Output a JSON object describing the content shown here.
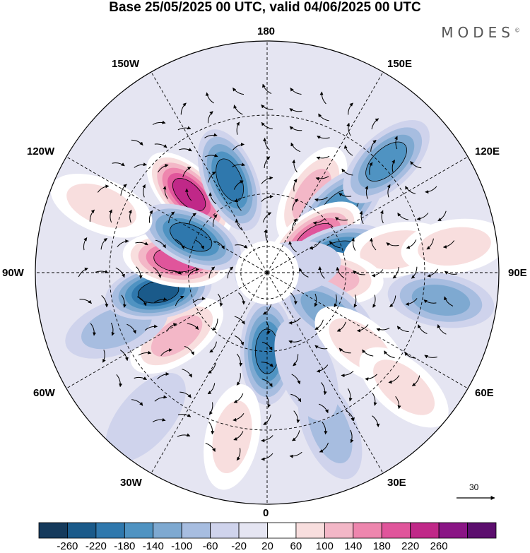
{
  "title": "Base 25/05/2025 00 UTC, valid 04/06/2025 00 UTC",
  "brand": "MODES",
  "brand_mark": "©",
  "longitude_labels": {
    "n180": "180",
    "e150": "150E",
    "e120": "120E",
    "e90": "90E",
    "e60": "60E",
    "e30": "30E",
    "n0": "0",
    "w30": "30W",
    "w60": "60W",
    "w90": "90W",
    "w120": "120W",
    "w150": "150W"
  },
  "reference_vector": "30",
  "colorbar": {
    "ticks": [
      "-260",
      "-220",
      "-180",
      "-140",
      "-100",
      "-60",
      "-20",
      "20",
      "60",
      "100",
      "140",
      "180",
      "220",
      "260"
    ],
    "colors": [
      "#153a5c",
      "#1a5a8a",
      "#2f78ad",
      "#4f93c2",
      "#7ea9d1",
      "#a7bde0",
      "#cfd3ec",
      "#e5e5f2",
      "#ffffff",
      "#f8dede",
      "#f3b7c7",
      "#ee86ae",
      "#e0559b",
      "#c02888",
      "#8a1585",
      "#5c0e6e"
    ]
  },
  "anomaly_blobs": [
    {
      "lon_deg": -135,
      "lat_deg": 48,
      "value": 220
    },
    {
      "lon_deg": -158,
      "lat_deg": 52,
      "value": -200
    },
    {
      "lon_deg": 150,
      "lat_deg": 56,
      "value": 120
    },
    {
      "lon_deg": 132,
      "lat_deg": 53,
      "value": -160
    },
    {
      "lon_deg": 133,
      "lat_deg": 28,
      "value": -140
    },
    {
      "lon_deg": 125,
      "lat_deg": 68,
      "value": 200
    },
    {
      "lon_deg": 105,
      "lat_deg": 62,
      "value": -180
    },
    {
      "lon_deg": 100,
      "lat_deg": 40,
      "value": 60
    },
    {
      "lon_deg": 98,
      "lat_deg": 18,
      "value": 60
    },
    {
      "lon_deg": 81,
      "lat_deg": 23,
      "value": -120
    },
    {
      "lon_deg": 85,
      "lat_deg": 66,
      "value": 100
    },
    {
      "lon_deg": 57,
      "lat_deg": 63,
      "value": -100
    },
    {
      "lon_deg": 52,
      "lat_deg": 45,
      "value": 80
    },
    {
      "lon_deg": 50,
      "lat_deg": 22,
      "value": 60
    },
    {
      "lon_deg": 22,
      "lat_deg": 26,
      "value": -60
    },
    {
      "lon_deg": 0,
      "lat_deg": 60,
      "value": -200
    },
    {
      "lon_deg": -12,
      "lat_deg": 26,
      "value": 60
    },
    {
      "lon_deg": -55,
      "lat_deg": 48,
      "value": 120
    },
    {
      "lon_deg": -70,
      "lat_deg": 29,
      "value": -60
    },
    {
      "lon_deg": -80,
      "lat_deg": 48,
      "value": -220
    },
    {
      "lon_deg": -98,
      "lat_deg": 55,
      "value": 180
    },
    {
      "lon_deg": -115,
      "lat_deg": 58,
      "value": -180
    },
    {
      "lon_deg": -112,
      "lat_deg": 22,
      "value": 60
    },
    {
      "lon_deg": -40,
      "lat_deg": 18,
      "value": -40
    },
    {
      "lon_deg": 22,
      "lat_deg": 50,
      "value": -40
    },
    {
      "lon_deg": 100,
      "lat_deg": 82,
      "value": -40
    }
  ]
}
